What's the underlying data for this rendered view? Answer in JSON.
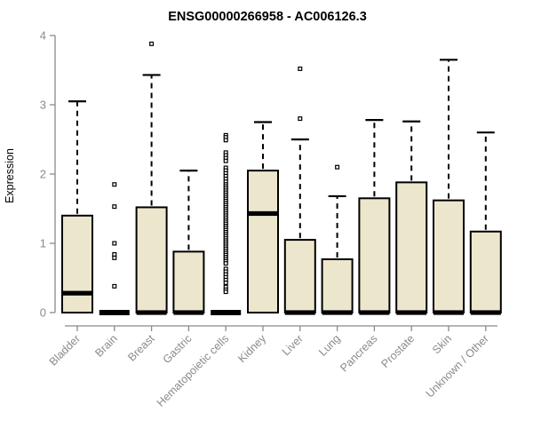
{
  "chart_data": {
    "type": "boxplot",
    "title": "ENSG00000266958 - AC006126.3",
    "ylabel": "Expression",
    "xlabel": "",
    "ylim": [
      0,
      4
    ],
    "yticks": [
      0,
      1,
      2,
      3,
      4
    ],
    "grid": false,
    "legend": false,
    "categories": [
      "Bladder",
      "Brain",
      "Breast",
      "Gastric",
      "Hematopoietic cells",
      "Kidney",
      "Liver",
      "Lung",
      "Pancreas",
      "Prostate",
      "Skin",
      "Unknown / Other"
    ],
    "boxes": [
      {
        "category": "Bladder",
        "min": 0,
        "q1": 0,
        "median": 0.28,
        "q3": 1.4,
        "max": 3.05,
        "outliers": []
      },
      {
        "category": "Brain",
        "min": 0,
        "q1": 0,
        "median": 0,
        "q3": 0,
        "max": 0,
        "outliers": [
          1.85,
          1.53,
          1.0,
          0.84,
          0.79,
          0.38
        ]
      },
      {
        "category": "Breast",
        "min": 0,
        "q1": 0,
        "median": 0,
        "q3": 1.52,
        "max": 3.43,
        "outliers": [
          3.88
        ]
      },
      {
        "category": "Gastric",
        "min": 0,
        "q1": 0,
        "median": 0,
        "q3": 0.88,
        "max": 2.05,
        "outliers": []
      },
      {
        "category": "Hematopoietic cells",
        "min": 0,
        "q1": 0,
        "median": 0,
        "q3": 0,
        "max": 0,
        "outliers": [
          2.56,
          2.53,
          2.49,
          2.31,
          2.27,
          2.23,
          2.19,
          2.09,
          2.05,
          2.01,
          1.97,
          1.93,
          1.89,
          1.85,
          1.82,
          1.79,
          1.76,
          1.73,
          1.7,
          1.67,
          1.64,
          1.61,
          1.58,
          1.55,
          1.52,
          1.49,
          1.46,
          1.43,
          1.4,
          1.37,
          1.34,
          1.31,
          1.28,
          1.25,
          1.22,
          1.19,
          1.16,
          1.13,
          1.1,
          1.07,
          1.04,
          1.01,
          0.98,
          0.95,
          0.92,
          0.89,
          0.86,
          0.83,
          0.8,
          0.77,
          0.74,
          0.71,
          0.63,
          0.59,
          0.55,
          0.51,
          0.47,
          0.43,
          0.37,
          0.33,
          0.3
        ]
      },
      {
        "category": "Kidney",
        "min": 0,
        "q1": 0,
        "median": 1.43,
        "q3": 2.05,
        "max": 2.75,
        "outliers": []
      },
      {
        "category": "Liver",
        "min": 0,
        "q1": 0,
        "median": 0,
        "q3": 1.05,
        "max": 2.5,
        "outliers": [
          3.52,
          2.8
        ]
      },
      {
        "category": "Lung",
        "min": 0,
        "q1": 0,
        "median": 0,
        "q3": 0.77,
        "max": 1.68,
        "outliers": [
          2.1
        ]
      },
      {
        "category": "Pancreas",
        "min": 0,
        "q1": 0,
        "median": 0,
        "q3": 1.65,
        "max": 2.78,
        "outliers": []
      },
      {
        "category": "Prostate",
        "min": 0,
        "q1": 0,
        "median": 0,
        "q3": 1.88,
        "max": 2.76,
        "outliers": []
      },
      {
        "category": "Skin",
        "min": 0,
        "q1": 0,
        "median": 0,
        "q3": 1.62,
        "max": 3.65,
        "outliers": []
      },
      {
        "category": "Unknown / Other",
        "min": 0,
        "q1": 0,
        "median": 0,
        "q3": 1.17,
        "max": 2.6,
        "outliers": []
      }
    ],
    "colors": {
      "box_fill": "#ECE7CC",
      "box_stroke": "#000000",
      "median": "#000000",
      "whisker": "#000000",
      "outlier_stroke": "#000000",
      "outlier_fill": "#ffffff",
      "axis": "#8a8a8a",
      "tick_label": "#8a8a8a",
      "ylabel": "#9a9a9a",
      "title": "#111111",
      "background": "#ffffff"
    }
  }
}
